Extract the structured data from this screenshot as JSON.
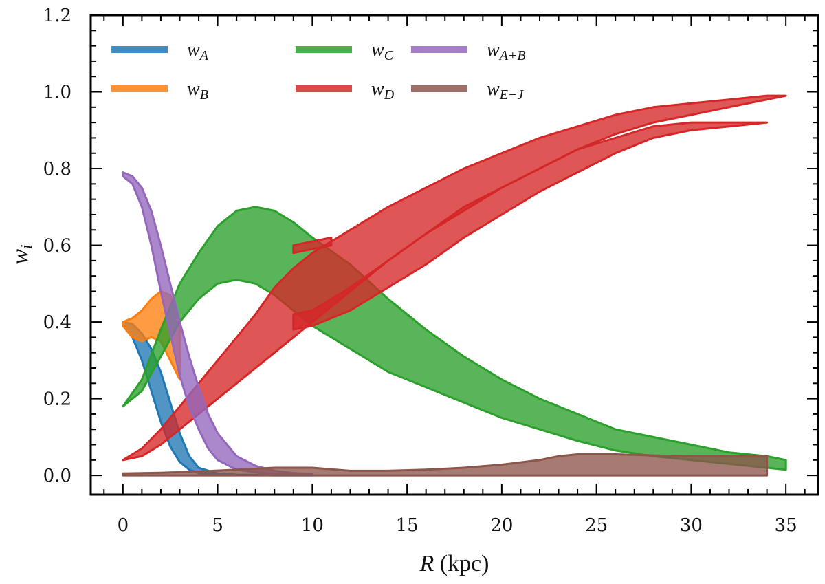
{
  "chart_data": {
    "type": "area",
    "title": "",
    "xlabel_var": "R",
    "xlabel_unit": " (kpc)",
    "ylabel_main": "w",
    "ylabel_sub": "i",
    "xlim": [
      -1.7,
      36.7
    ],
    "ylim": [
      -0.05,
      1.2
    ],
    "xticks": [
      0,
      5,
      10,
      15,
      20,
      25,
      30,
      35
    ],
    "xtick_labels": [
      "0",
      "5",
      "10",
      "15",
      "20",
      "25",
      "30",
      "35"
    ],
    "yticks": [
      0.0,
      0.2,
      0.4,
      0.6,
      0.8,
      1.0,
      1.2
    ],
    "ytick_labels": [
      "0.0",
      "0.2",
      "0.4",
      "0.6",
      "0.8",
      "1.0",
      "1.2"
    ],
    "legend_position": "top-left",
    "series": [
      {
        "name": "wA",
        "label_main": "w",
        "label_sub": "A",
        "color": "#1f77b4",
        "bands": [
          {
            "x": [
              0,
              0.5,
              1,
              1.5,
              2,
              2.5,
              3,
              3.5,
              4,
              5,
              6,
              8,
              10
            ],
            "lower": [
              0.39,
              0.36,
              0.3,
              0.22,
              0.14,
              0.075,
              0.035,
              0.015,
              0.006,
              0.002,
              0.001,
              0.0,
              0.0
            ],
            "upper": [
              0.4,
              0.395,
              0.37,
              0.33,
              0.27,
              0.19,
              0.11,
              0.05,
              0.02,
              0.005,
              0.002,
              0.001,
              0.0
            ]
          }
        ]
      },
      {
        "name": "wB",
        "label_main": "w",
        "label_sub": "B",
        "color": "#ff7f0e",
        "bands": [
          {
            "x": [
              0,
              0.5,
              1,
              1.5,
              2,
              2.5,
              3
            ],
            "lower": [
              0.39,
              0.36,
              0.35,
              0.36,
              0.35,
              0.3,
              0.25
            ],
            "upper": [
              0.4,
              0.41,
              0.43,
              0.46,
              0.48,
              0.47,
              0.4
            ]
          }
        ]
      },
      {
        "name": "wC",
        "label_main": "w",
        "label_sub": "C",
        "color": "#2ca02c",
        "bands": [
          {
            "x": [
              0,
              1,
              2,
              3,
              4,
              5,
              6,
              7,
              8,
              9,
              10,
              12,
              14,
              16,
              18,
              20,
              22,
              24,
              26,
              28,
              30,
              32,
              34,
              35
            ],
            "lower": [
              0.18,
              0.22,
              0.31,
              0.4,
              0.46,
              0.5,
              0.51,
              0.5,
              0.47,
              0.43,
              0.39,
              0.33,
              0.27,
              0.23,
              0.19,
              0.15,
              0.12,
              0.09,
              0.065,
              0.05,
              0.04,
              0.03,
              0.02,
              0.015
            ],
            "upper": [
              0.18,
              0.25,
              0.38,
              0.5,
              0.58,
              0.65,
              0.69,
              0.7,
              0.69,
              0.66,
              0.62,
              0.55,
              0.46,
              0.38,
              0.31,
              0.25,
              0.2,
              0.16,
              0.12,
              0.1,
              0.08,
              0.06,
              0.05,
              0.04
            ]
          }
        ]
      },
      {
        "name": "wD",
        "label_main": "w",
        "label_sub": "D",
        "color": "#d62728",
        "bands": [
          {
            "x": [
              0,
              1,
              2,
              3,
              4,
              5,
              6,
              7,
              8,
              9,
              10,
              12,
              14,
              16,
              18,
              20,
              22,
              24,
              26,
              28,
              30,
              32,
              34,
              35
            ],
            "lower": [
              0.04,
              0.05,
              0.08,
              0.12,
              0.16,
              0.2,
              0.24,
              0.28,
              0.32,
              0.36,
              0.4,
              0.48,
              0.56,
              0.63,
              0.69,
              0.75,
              0.8,
              0.85,
              0.89,
              0.92,
              0.94,
              0.96,
              0.98,
              0.99
            ],
            "upper": [
              0.04,
              0.07,
              0.12,
              0.18,
              0.24,
              0.3,
              0.36,
              0.42,
              0.49,
              0.54,
              0.58,
              0.64,
              0.7,
              0.75,
              0.8,
              0.84,
              0.88,
              0.91,
              0.94,
              0.96,
              0.97,
              0.98,
              0.99,
              0.99
            ]
          },
          {
            "x": [
              9,
              10,
              12,
              14,
              16,
              18,
              20,
              22,
              24,
              26,
              28,
              30,
              32,
              34
            ],
            "lower": [
              0.38,
              0.39,
              0.43,
              0.49,
              0.55,
              0.62,
              0.68,
              0.74,
              0.79,
              0.84,
              0.88,
              0.9,
              0.91,
              0.92
            ],
            "upper": [
              0.42,
              0.43,
              0.49,
              0.56,
              0.63,
              0.7,
              0.75,
              0.8,
              0.85,
              0.88,
              0.91,
              0.92,
              0.92,
              0.92
            ]
          },
          {
            "x": [
              9,
              9.5,
              10,
              10.5,
              11
            ],
            "lower": [
              0.58,
              0.585,
              0.59,
              0.595,
              0.6
            ],
            "upper": [
              0.6,
              0.605,
              0.61,
              0.615,
              0.62
            ]
          }
        ]
      },
      {
        "name": "wA+B",
        "label_main": "w",
        "label_sub": "A+B",
        "color": "#9467bd",
        "bands": [
          {
            "x": [
              0,
              0.5,
              1,
              1.5,
              2,
              2.5,
              3,
              3.5,
              4,
              4.5,
              5,
              6,
              7,
              8,
              9,
              10
            ],
            "lower": [
              0.78,
              0.76,
              0.7,
              0.6,
              0.48,
              0.37,
              0.26,
              0.18,
              0.12,
              0.07,
              0.04,
              0.015,
              0.008,
              0.004,
              0.002,
              0.0
            ],
            "upper": [
              0.79,
              0.78,
              0.75,
              0.69,
              0.6,
              0.5,
              0.4,
              0.31,
              0.23,
              0.16,
              0.11,
              0.05,
              0.025,
              0.012,
              0.006,
              0.003
            ]
          }
        ]
      },
      {
        "name": "wE-J",
        "label_main": "w",
        "label_sub": "E−J",
        "color": "#8c564b",
        "bands": [
          {
            "x": [
              0,
              2,
              4,
              6,
              8,
              10,
              12,
              14,
              16,
              18,
              20,
              22,
              23,
              24,
              26,
              28,
              30,
              32,
              34
            ],
            "lower": [
              0.0,
              0.0,
              0.0,
              0.0,
              0.0,
              0.0,
              0.0,
              0.0,
              0.0,
              0.0,
              0.0,
              0.0,
              0.0,
              0.0,
              0.0,
              0.0,
              0.0,
              0.0,
              0.0
            ],
            "upper": [
              0.005,
              0.007,
              0.01,
              0.015,
              0.02,
              0.02,
              0.012,
              0.012,
              0.015,
              0.02,
              0.028,
              0.04,
              0.05,
              0.055,
              0.055,
              0.052,
              0.05,
              0.05,
              0.05
            ]
          }
        ]
      }
    ]
  }
}
